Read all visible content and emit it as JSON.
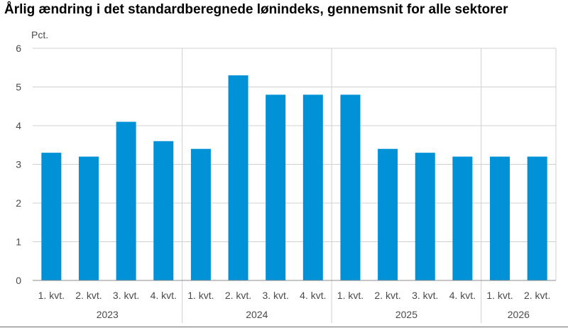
{
  "title": "Årlig ændring i det standardberegnede lønindeks, gennemsnit for alle sektorer",
  "chart_data": {
    "type": "bar",
    "title": "Årlig ændring i det standardberegnede lønindeks, gennemsnit for alle sektorer",
    "ylabel": "Pct.",
    "ylim": [
      0,
      6
    ],
    "yticks": [
      "0",
      "1",
      "2",
      "3",
      "4",
      "5",
      "6"
    ],
    "grid": true,
    "bar_color": "#0091d6",
    "categories": [
      "1. kvt.",
      "2. kvt.",
      "3. kvt.",
      "4. kvt.",
      "1. kvt.",
      "2. kvt.",
      "3. kvt.",
      "4. kvt.",
      "1. kvt.",
      "2. kvt.",
      "3. kvt.",
      "4. kvt.",
      "1. kvt.",
      "2. kvt."
    ],
    "groups": [
      {
        "label": "2023",
        "count": 4
      },
      {
        "label": "2024",
        "count": 4
      },
      {
        "label": "2025",
        "count": 4
      },
      {
        "label": "2026",
        "count": 2
      }
    ],
    "values": [
      3.3,
      3.2,
      4.1,
      3.6,
      3.4,
      5.3,
      4.8,
      4.8,
      4.8,
      3.4,
      3.3,
      3.2,
      3.2,
      3.2
    ]
  }
}
